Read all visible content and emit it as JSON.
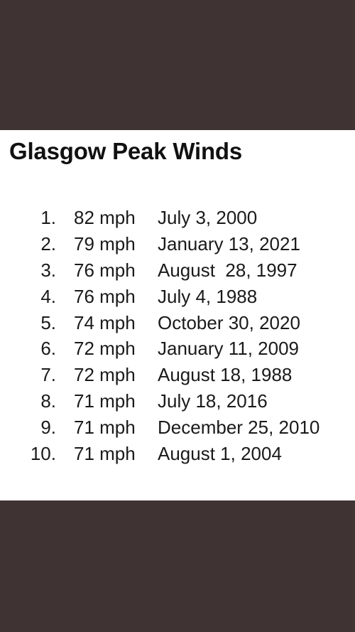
{
  "document": {
    "title": "Glasgow Peak Winds"
  },
  "rankings": [
    {
      "rank": "1.",
      "speed": "82 mph",
      "date": "July 3, 2000"
    },
    {
      "rank": "2.",
      "speed": "79 mph",
      "date": "January 13, 2021"
    },
    {
      "rank": "3.",
      "speed": "76 mph",
      "date": "August  28, 1997"
    },
    {
      "rank": "4.",
      "speed": "76 mph",
      "date": "July 4, 1988"
    },
    {
      "rank": "5.",
      "speed": "74 mph",
      "date": "October 30, 2020"
    },
    {
      "rank": "6.",
      "speed": "72 mph",
      "date": "January 11, 2009"
    },
    {
      "rank": "7.",
      "speed": "72 mph",
      "date": "August 18, 1988"
    },
    {
      "rank": "8.",
      "speed": "71 mph",
      "date": "July 18, 2016"
    },
    {
      "rank": "9.",
      "speed": "71 mph",
      "date": "December 25, 2010"
    },
    {
      "rank": "10.",
      "speed": "71 mph",
      "date": "August 1, 2004"
    }
  ],
  "colors": {
    "background_band": "#3f3334",
    "panel": "#ffffff",
    "text": "#1a1a1a"
  }
}
